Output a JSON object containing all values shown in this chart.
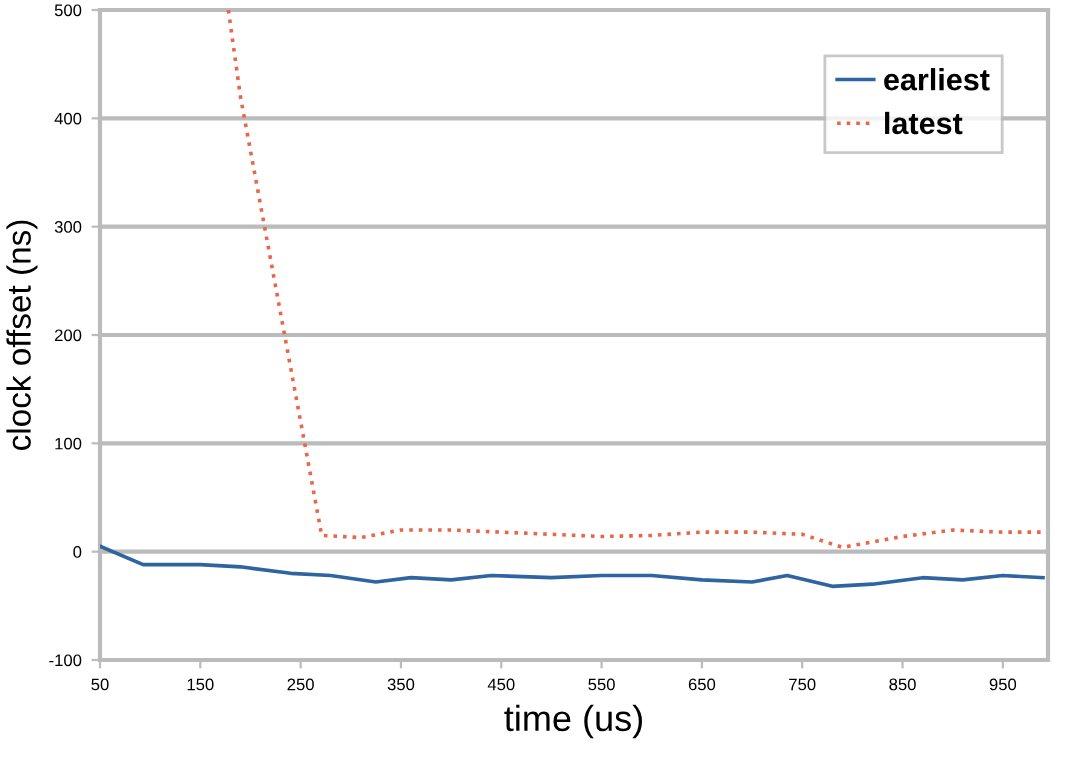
{
  "chart_data": {
    "type": "line",
    "xlabel": "time (us)",
    "ylabel": "clock offset (ns)",
    "xlim": [
      50,
      995
    ],
    "ylim": [
      -100,
      500
    ],
    "xticks": [
      50,
      150,
      250,
      350,
      450,
      550,
      650,
      750,
      850,
      950
    ],
    "yticks": [
      -100,
      0,
      100,
      200,
      300,
      400,
      500
    ],
    "grid": "y",
    "legend": "top right",
    "series": [
      {
        "name": "earliest",
        "color": "#2e64a0",
        "line_style": "solid",
        "x": [
          50,
          93,
          150,
          190,
          240,
          280,
          325,
          360,
          400,
          440,
          500,
          550,
          600,
          650,
          700,
          735,
          780,
          820,
          870,
          910,
          950,
          990
        ],
        "values": [
          5,
          -12,
          -12,
          -14,
          -20,
          -22,
          -28,
          -24,
          -26,
          -22,
          -24,
          -22,
          -22,
          -26,
          -28,
          -22,
          -32,
          -30,
          -24,
          -26,
          -22,
          -24
        ]
      },
      {
        "name": "latest",
        "color": "#e8674a",
        "line_style": "dotted",
        "x": [
          178,
          190,
          271,
          310,
          350,
          400,
          450,
          500,
          550,
          600,
          650,
          700,
          750,
          790,
          850,
          900,
          950,
          990
        ],
        "values": [
          500,
          420,
          15,
          13,
          20,
          20,
          18,
          16,
          14,
          15,
          18,
          18,
          16,
          4,
          14,
          20,
          18,
          18
        ]
      }
    ]
  }
}
